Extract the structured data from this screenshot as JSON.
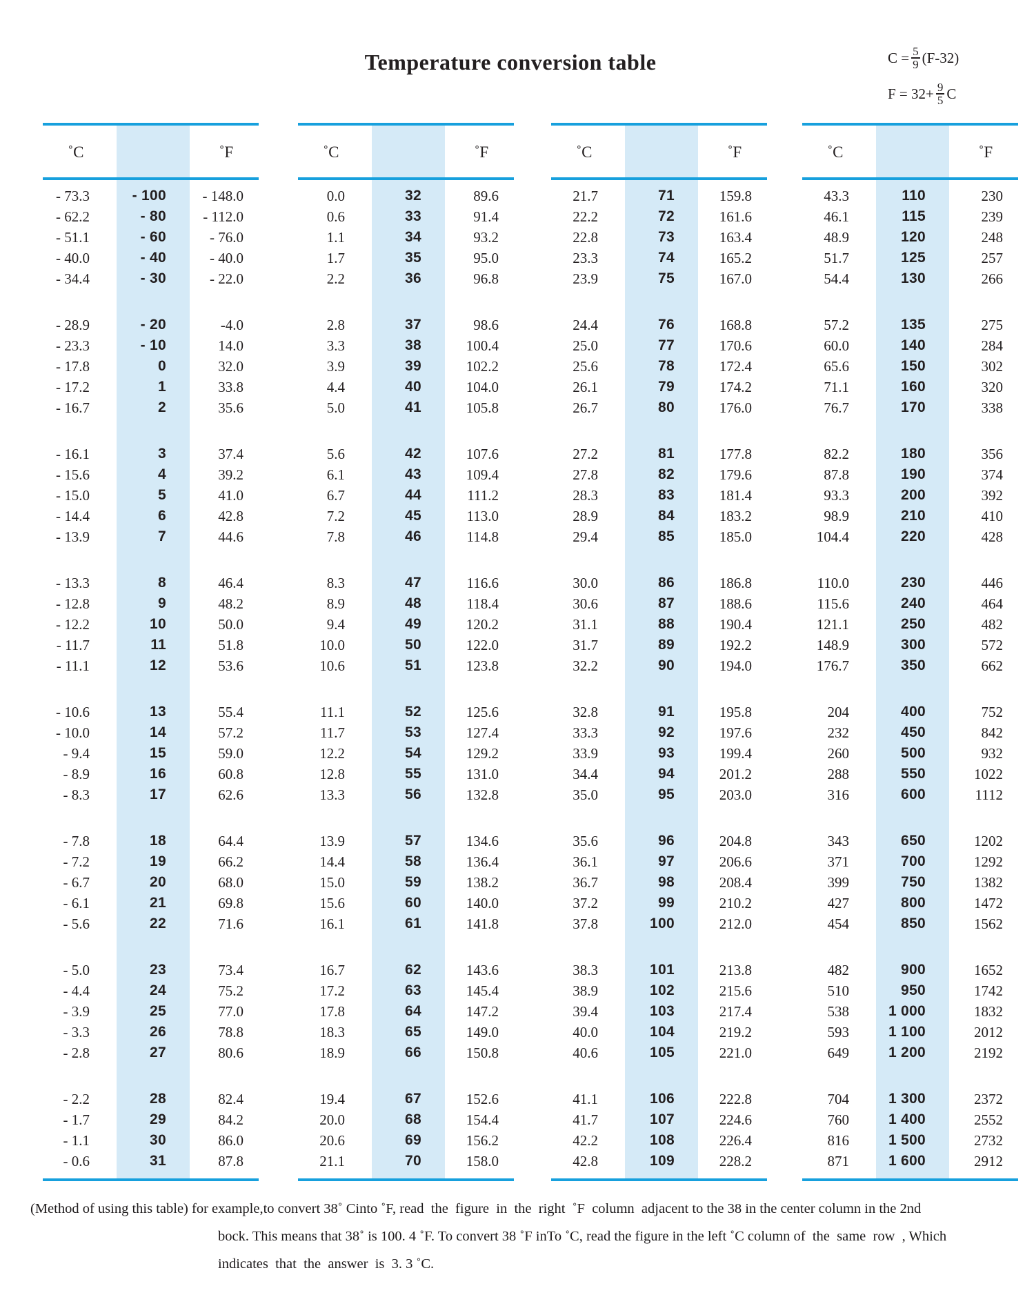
{
  "title": "Temperature conversion table",
  "formulas": {
    "c_from_f": {
      "lhs": "C =",
      "numerator": "5",
      "denominator": "9",
      "rhs": "(F-32)"
    },
    "f_from_c": {
      "lhs": "F = 32+",
      "numerator": "9",
      "denominator": "5",
      "rhs": "C"
    }
  },
  "table": {
    "celsius_header": "˚C",
    "fahrenheit_header": "˚F",
    "groups": [
      {
        "blocks": [
          [
            [
              "- 73.3",
              "- 100",
              "- 148.0"
            ],
            [
              "- 62.2",
              "- 80",
              "- 112.0"
            ],
            [
              "- 51.1",
              "- 60",
              "- 76.0"
            ],
            [
              "- 40.0",
              "- 40",
              "- 40.0"
            ],
            [
              "- 34.4",
              "- 30",
              "- 22.0"
            ]
          ],
          [
            [
              "- 28.9",
              "- 20",
              "-4.0"
            ],
            [
              "- 23.3",
              "- 10",
              "14.0"
            ],
            [
              "- 17.8",
              "0",
              "32.0"
            ],
            [
              "- 17.2",
              "1",
              "33.8"
            ],
            [
              "- 16.7",
              "2",
              "35.6"
            ]
          ],
          [
            [
              "- 16.1",
              "3",
              "37.4"
            ],
            [
              "- 15.6",
              "4",
              "39.2"
            ],
            [
              "- 15.0",
              "5",
              "41.0"
            ],
            [
              "- 14.4",
              "6",
              "42.8"
            ],
            [
              "- 13.9",
              "7",
              "44.6"
            ]
          ],
          [
            [
              "- 13.3",
              "8",
              "46.4"
            ],
            [
              "- 12.8",
              "9",
              "48.2"
            ],
            [
              "- 12.2",
              "10",
              "50.0"
            ],
            [
              "- 11.7",
              "11",
              "51.8"
            ],
            [
              "- 11.1",
              "12",
              "53.6"
            ]
          ],
          [
            [
              "- 10.6",
              "13",
              "55.4"
            ],
            [
              "- 10.0",
              "14",
              "57.2"
            ],
            [
              "- 9.4",
              "15",
              "59.0"
            ],
            [
              "- 8.9",
              "16",
              "60.8"
            ],
            [
              "- 8.3",
              "17",
              "62.6"
            ]
          ],
          [
            [
              "- 7.8",
              "18",
              "64.4"
            ],
            [
              "- 7.2",
              "19",
              "66.2"
            ],
            [
              "- 6.7",
              "20",
              "68.0"
            ],
            [
              "- 6.1",
              "21",
              "69.8"
            ],
            [
              "- 5.6",
              "22",
              "71.6"
            ]
          ],
          [
            [
              "- 5.0",
              "23",
              "73.4"
            ],
            [
              "- 4.4",
              "24",
              "75.2"
            ],
            [
              "- 3.9",
              "25",
              "77.0"
            ],
            [
              "- 3.3",
              "26",
              "78.8"
            ],
            [
              "- 2.8",
              "27",
              "80.6"
            ]
          ],
          [
            [
              "- 2.2",
              "28",
              "82.4"
            ],
            [
              "- 1.7",
              "29",
              "84.2"
            ],
            [
              "- 1.1",
              "30",
              "86.0"
            ],
            [
              "- 0.6",
              "31",
              "87.8"
            ]
          ]
        ]
      },
      {
        "blocks": [
          [
            [
              "0.0",
              "32",
              "89.6"
            ],
            [
              "0.6",
              "33",
              "91.4"
            ],
            [
              "1.1",
              "34",
              "93.2"
            ],
            [
              "1.7",
              "35",
              "95.0"
            ],
            [
              "2.2",
              "36",
              "96.8"
            ]
          ],
          [
            [
              "2.8",
              "37",
              "98.6"
            ],
            [
              "3.3",
              "38",
              "100.4"
            ],
            [
              "3.9",
              "39",
              "102.2"
            ],
            [
              "4.4",
              "40",
              "104.0"
            ],
            [
              "5.0",
              "41",
              "105.8"
            ]
          ],
          [
            [
              "5.6",
              "42",
              "107.6"
            ],
            [
              "6.1",
              "43",
              "109.4"
            ],
            [
              "6.7",
              "44",
              "111.2"
            ],
            [
              "7.2",
              "45",
              "113.0"
            ],
            [
              "7.8",
              "46",
              "114.8"
            ]
          ],
          [
            [
              "8.3",
              "47",
              "116.6"
            ],
            [
              "8.9",
              "48",
              "118.4"
            ],
            [
              "9.4",
              "49",
              "120.2"
            ],
            [
              "10.0",
              "50",
              "122.0"
            ],
            [
              "10.6",
              "51",
              "123.8"
            ]
          ],
          [
            [
              "11.1",
              "52",
              "125.6"
            ],
            [
              "11.7",
              "53",
              "127.4"
            ],
            [
              "12.2",
              "54",
              "129.2"
            ],
            [
              "12.8",
              "55",
              "131.0"
            ],
            [
              "13.3",
              "56",
              "132.8"
            ]
          ],
          [
            [
              "13.9",
              "57",
              "134.6"
            ],
            [
              "14.4",
              "58",
              "136.4"
            ],
            [
              "15.0",
              "59",
              "138.2"
            ],
            [
              "15.6",
              "60",
              "140.0"
            ],
            [
              "16.1",
              "61",
              "141.8"
            ]
          ],
          [
            [
              "16.7",
              "62",
              "143.6"
            ],
            [
              "17.2",
              "63",
              "145.4"
            ],
            [
              "17.8",
              "64",
              "147.2"
            ],
            [
              "18.3",
              "65",
              "149.0"
            ],
            [
              "18.9",
              "66",
              "150.8"
            ]
          ],
          [
            [
              "19.4",
              "67",
              "152.6"
            ],
            [
              "20.0",
              "68",
              "154.4"
            ],
            [
              "20.6",
              "69",
              "156.2"
            ],
            [
              "21.1",
              "70",
              "158.0"
            ]
          ]
        ]
      },
      {
        "blocks": [
          [
            [
              "21.7",
              "71",
              "159.8"
            ],
            [
              "22.2",
              "72",
              "161.6"
            ],
            [
              "22.8",
              "73",
              "163.4"
            ],
            [
              "23.3",
              "74",
              "165.2"
            ],
            [
              "23.9",
              "75",
              "167.0"
            ]
          ],
          [
            [
              "24.4",
              "76",
              "168.8"
            ],
            [
              "25.0",
              "77",
              "170.6"
            ],
            [
              "25.6",
              "78",
              "172.4"
            ],
            [
              "26.1",
              "79",
              "174.2"
            ],
            [
              "26.7",
              "80",
              "176.0"
            ]
          ],
          [
            [
              "27.2",
              "81",
              "177.8"
            ],
            [
              "27.8",
              "82",
              "179.6"
            ],
            [
              "28.3",
              "83",
              "181.4"
            ],
            [
              "28.9",
              "84",
              "183.2"
            ],
            [
              "29.4",
              "85",
              "185.0"
            ]
          ],
          [
            [
              "30.0",
              "86",
              "186.8"
            ],
            [
              "30.6",
              "87",
              "188.6"
            ],
            [
              "31.1",
              "88",
              "190.4"
            ],
            [
              "31.7",
              "89",
              "192.2"
            ],
            [
              "32.2",
              "90",
              "194.0"
            ]
          ],
          [
            [
              "32.8",
              "91",
              "195.8"
            ],
            [
              "33.3",
              "92",
              "197.6"
            ],
            [
              "33.9",
              "93",
              "199.4"
            ],
            [
              "34.4",
              "94",
              "201.2"
            ],
            [
              "35.0",
              "95",
              "203.0"
            ]
          ],
          [
            [
              "35.6",
              "96",
              "204.8"
            ],
            [
              "36.1",
              "97",
              "206.6"
            ],
            [
              "36.7",
              "98",
              "208.4"
            ],
            [
              "37.2",
              "99",
              "210.2"
            ],
            [
              "37.8",
              "100",
              "212.0"
            ]
          ],
          [
            [
              "38.3",
              "101",
              "213.8"
            ],
            [
              "38.9",
              "102",
              "215.6"
            ],
            [
              "39.4",
              "103",
              "217.4"
            ],
            [
              "40.0",
              "104",
              "219.2"
            ],
            [
              "40.6",
              "105",
              "221.0"
            ]
          ],
          [
            [
              "41.1",
              "106",
              "222.8"
            ],
            [
              "41.7",
              "107",
              "224.6"
            ],
            [
              "42.2",
              "108",
              "226.4"
            ],
            [
              "42.8",
              "109",
              "228.2"
            ]
          ]
        ]
      },
      {
        "blocks": [
          [
            [
              "43.3",
              "110",
              "230"
            ],
            [
              "46.1",
              "115",
              "239"
            ],
            [
              "48.9",
              "120",
              "248"
            ],
            [
              "51.7",
              "125",
              "257"
            ],
            [
              "54.4",
              "130",
              "266"
            ]
          ],
          [
            [
              "57.2",
              "135",
              "275"
            ],
            [
              "60.0",
              "140",
              "284"
            ],
            [
              "65.6",
              "150",
              "302"
            ],
            [
              "71.1",
              "160",
              "320"
            ],
            [
              "76.7",
              "170",
              "338"
            ]
          ],
          [
            [
              "82.2",
              "180",
              "356"
            ],
            [
              "87.8",
              "190",
              "374"
            ],
            [
              "93.3",
              "200",
              "392"
            ],
            [
              "98.9",
              "210",
              "410"
            ],
            [
              "104.4",
              "220",
              "428"
            ]
          ],
          [
            [
              "110.0",
              "230",
              "446"
            ],
            [
              "115.6",
              "240",
              "464"
            ],
            [
              "121.1",
              "250",
              "482"
            ],
            [
              "148.9",
              "300",
              "572"
            ],
            [
              "176.7",
              "350",
              "662"
            ]
          ],
          [
            [
              "204",
              "400",
              "752"
            ],
            [
              "232",
              "450",
              "842"
            ],
            [
              "260",
              "500",
              "932"
            ],
            [
              "288",
              "550",
              "1022"
            ],
            [
              "316",
              "600",
              "1112"
            ]
          ],
          [
            [
              "343",
              "650",
              "1202"
            ],
            [
              "371",
              "700",
              "1292"
            ],
            [
              "399",
              "750",
              "1382"
            ],
            [
              "427",
              "800",
              "1472"
            ],
            [
              "454",
              "850",
              "1562"
            ]
          ],
          [
            [
              "482",
              "900",
              "1652"
            ],
            [
              "510",
              "950",
              "1742"
            ],
            [
              "538",
              "1 000",
              "1832"
            ],
            [
              "593",
              "1 100",
              "2012"
            ],
            [
              "649",
              "1 200",
              "2192"
            ]
          ],
          [
            [
              "704",
              "1 300",
              "2372"
            ],
            [
              "760",
              "1 400",
              "2552"
            ],
            [
              "816",
              "1 500",
              "2732"
            ],
            [
              "871",
              "1 600",
              "2912"
            ]
          ]
        ]
      }
    ]
  },
  "footer_lines": [
    "(Method of using this table) for example,to convert 38˚ Cinto ˚F, read  the  figure  in  the  right  ˚F  column  adjacent to the 38 in the center column in the 2nd",
    "bock. This means that 38˚ is 100. 4 ˚F. To convert 38 ˚F inTo ˚C, read the figure in the left ˚C column of  the  same  row  , Which",
    "indicates  that  the  answer  is  3. 3 ˚C."
  ],
  "colors": {
    "rule_blue": "#17a0dd",
    "band_blue": "#d5eaf7",
    "text": "#231f20"
  }
}
